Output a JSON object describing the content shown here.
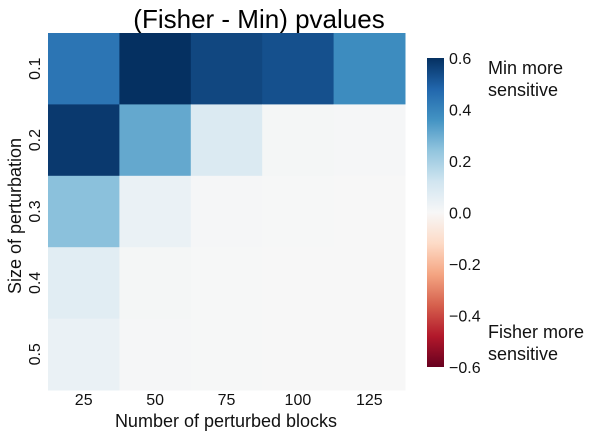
{
  "chart_data": {
    "type": "heatmap",
    "title": "(Fisher - Min) pvalues",
    "xlabel": "Number of perturbed blocks",
    "ylabel": "Size of perturbation",
    "x_categories": [
      "25",
      "50",
      "75",
      "100",
      "125"
    ],
    "y_categories": [
      "0.1",
      "0.2",
      "0.3",
      "0.4",
      "0.5"
    ],
    "values": [
      [
        0.44,
        0.65,
        0.55,
        0.53,
        0.38
      ],
      [
        0.58,
        0.31,
        0.09,
        0.01,
        0.005
      ],
      [
        0.25,
        0.04,
        0.005,
        0.002,
        0.001
      ],
      [
        0.07,
        0.01,
        0.003,
        0.001,
        0.0
      ],
      [
        0.04,
        0.006,
        0.002,
        0.001,
        0.0
      ]
    ],
    "colormap": "RdBu",
    "vmin": -0.6,
    "vmax": 0.6,
    "colorbar": {
      "ticks": [
        0.6,
        0.4,
        0.2,
        0.0,
        -0.2,
        -0.4,
        -0.6
      ],
      "tick_labels": [
        "0.6",
        "0.4",
        "0.2",
        "0.0",
        "−0.2",
        "−0.4",
        "−0.6"
      ]
    },
    "annotations": {
      "top": [
        "Min more",
        "sensitive"
      ],
      "bottom": [
        "Fisher more",
        "sensitive"
      ]
    },
    "grid": false
  }
}
